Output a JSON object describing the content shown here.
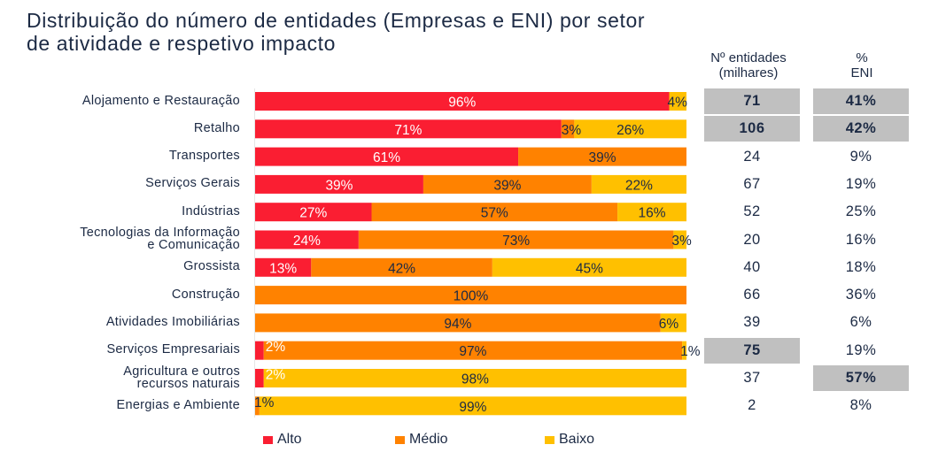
{
  "title_lines": [
    "Distribuição do número de entidades (Empresas e ENI) por setor",
    "de atividade  e respetivo impacto"
  ],
  "table": {
    "headers": {
      "entities": "Nº entidades (milhares)",
      "entities_lines": [
        "Nº entidades",
        "(milhares)"
      ],
      "eni": "% ENI",
      "eni_lines": [
        "%",
        "ENI"
      ]
    }
  },
  "colors": {
    "alto": "#fa1e32",
    "medio": "#ff8200",
    "baixo": "#ffc000",
    "highlight": "#c0c0c0",
    "text": "#1c2a44"
  },
  "chart_data": {
    "type": "bar",
    "orientation": "horizontal",
    "stacked": "100%",
    "title": "Distribuição do número de entidades (Empresas e ENI) por setor de atividade e respetivo impacto",
    "xlabel": "",
    "ylabel": "",
    "xlim": [
      0,
      100
    ],
    "grid": false,
    "legend_position": "bottom",
    "categories": [
      "Alojamento e Restauração",
      "Retalho",
      "Transportes",
      "Serviços Gerais",
      "Indústrias",
      "Tecnologias da Informação e Comunicação",
      "Grossista",
      "Construção",
      "Atividades Imobiliárias",
      "Serviços Empresariais",
      "Agricultura e outros recursos naturais",
      "Energias e Ambiente"
    ],
    "category_lines": [
      [
        "Alojamento e Restauração"
      ],
      [
        "Retalho"
      ],
      [
        "Transportes"
      ],
      [
        "Serviços Gerais"
      ],
      [
        "Indústrias"
      ],
      [
        "Tecnologias da Informação",
        "e Comunicação"
      ],
      [
        "Grossista"
      ],
      [
        "Construção"
      ],
      [
        "Atividades Imobiliárias"
      ],
      [
        "Serviços Empresariais"
      ],
      [
        "Agricultura e outros",
        "recursos naturais"
      ],
      [
        "Energias e Ambiente"
      ]
    ],
    "series": [
      {
        "name": "Alto",
        "values": [
          96,
          71,
          61,
          39,
          27,
          24,
          13,
          0,
          0,
          2,
          2,
          0
        ]
      },
      {
        "name": "Médio",
        "values": [
          0,
          3,
          39,
          39,
          57,
          73,
          42,
          100,
          94,
          97,
          0,
          1
        ]
      },
      {
        "name": "Baixo",
        "values": [
          4,
          26,
          0,
          22,
          16,
          3,
          45,
          0,
          6,
          1,
          98,
          99
        ]
      }
    ],
    "entities_thousands": [
      71,
      106,
      24,
      67,
      52,
      20,
      40,
      66,
      39,
      75,
      37,
      2
    ],
    "entities_highlight": [
      true,
      true,
      false,
      false,
      false,
      false,
      false,
      false,
      false,
      true,
      false,
      false
    ],
    "eni_pct": [
      "41%",
      "42%",
      "9%",
      "19%",
      "25%",
      "16%",
      "18%",
      "36%",
      "6%",
      "19%",
      "57%",
      "8%"
    ],
    "eni_highlight": [
      true,
      true,
      false,
      false,
      false,
      false,
      false,
      false,
      false,
      false,
      true,
      false
    ]
  }
}
